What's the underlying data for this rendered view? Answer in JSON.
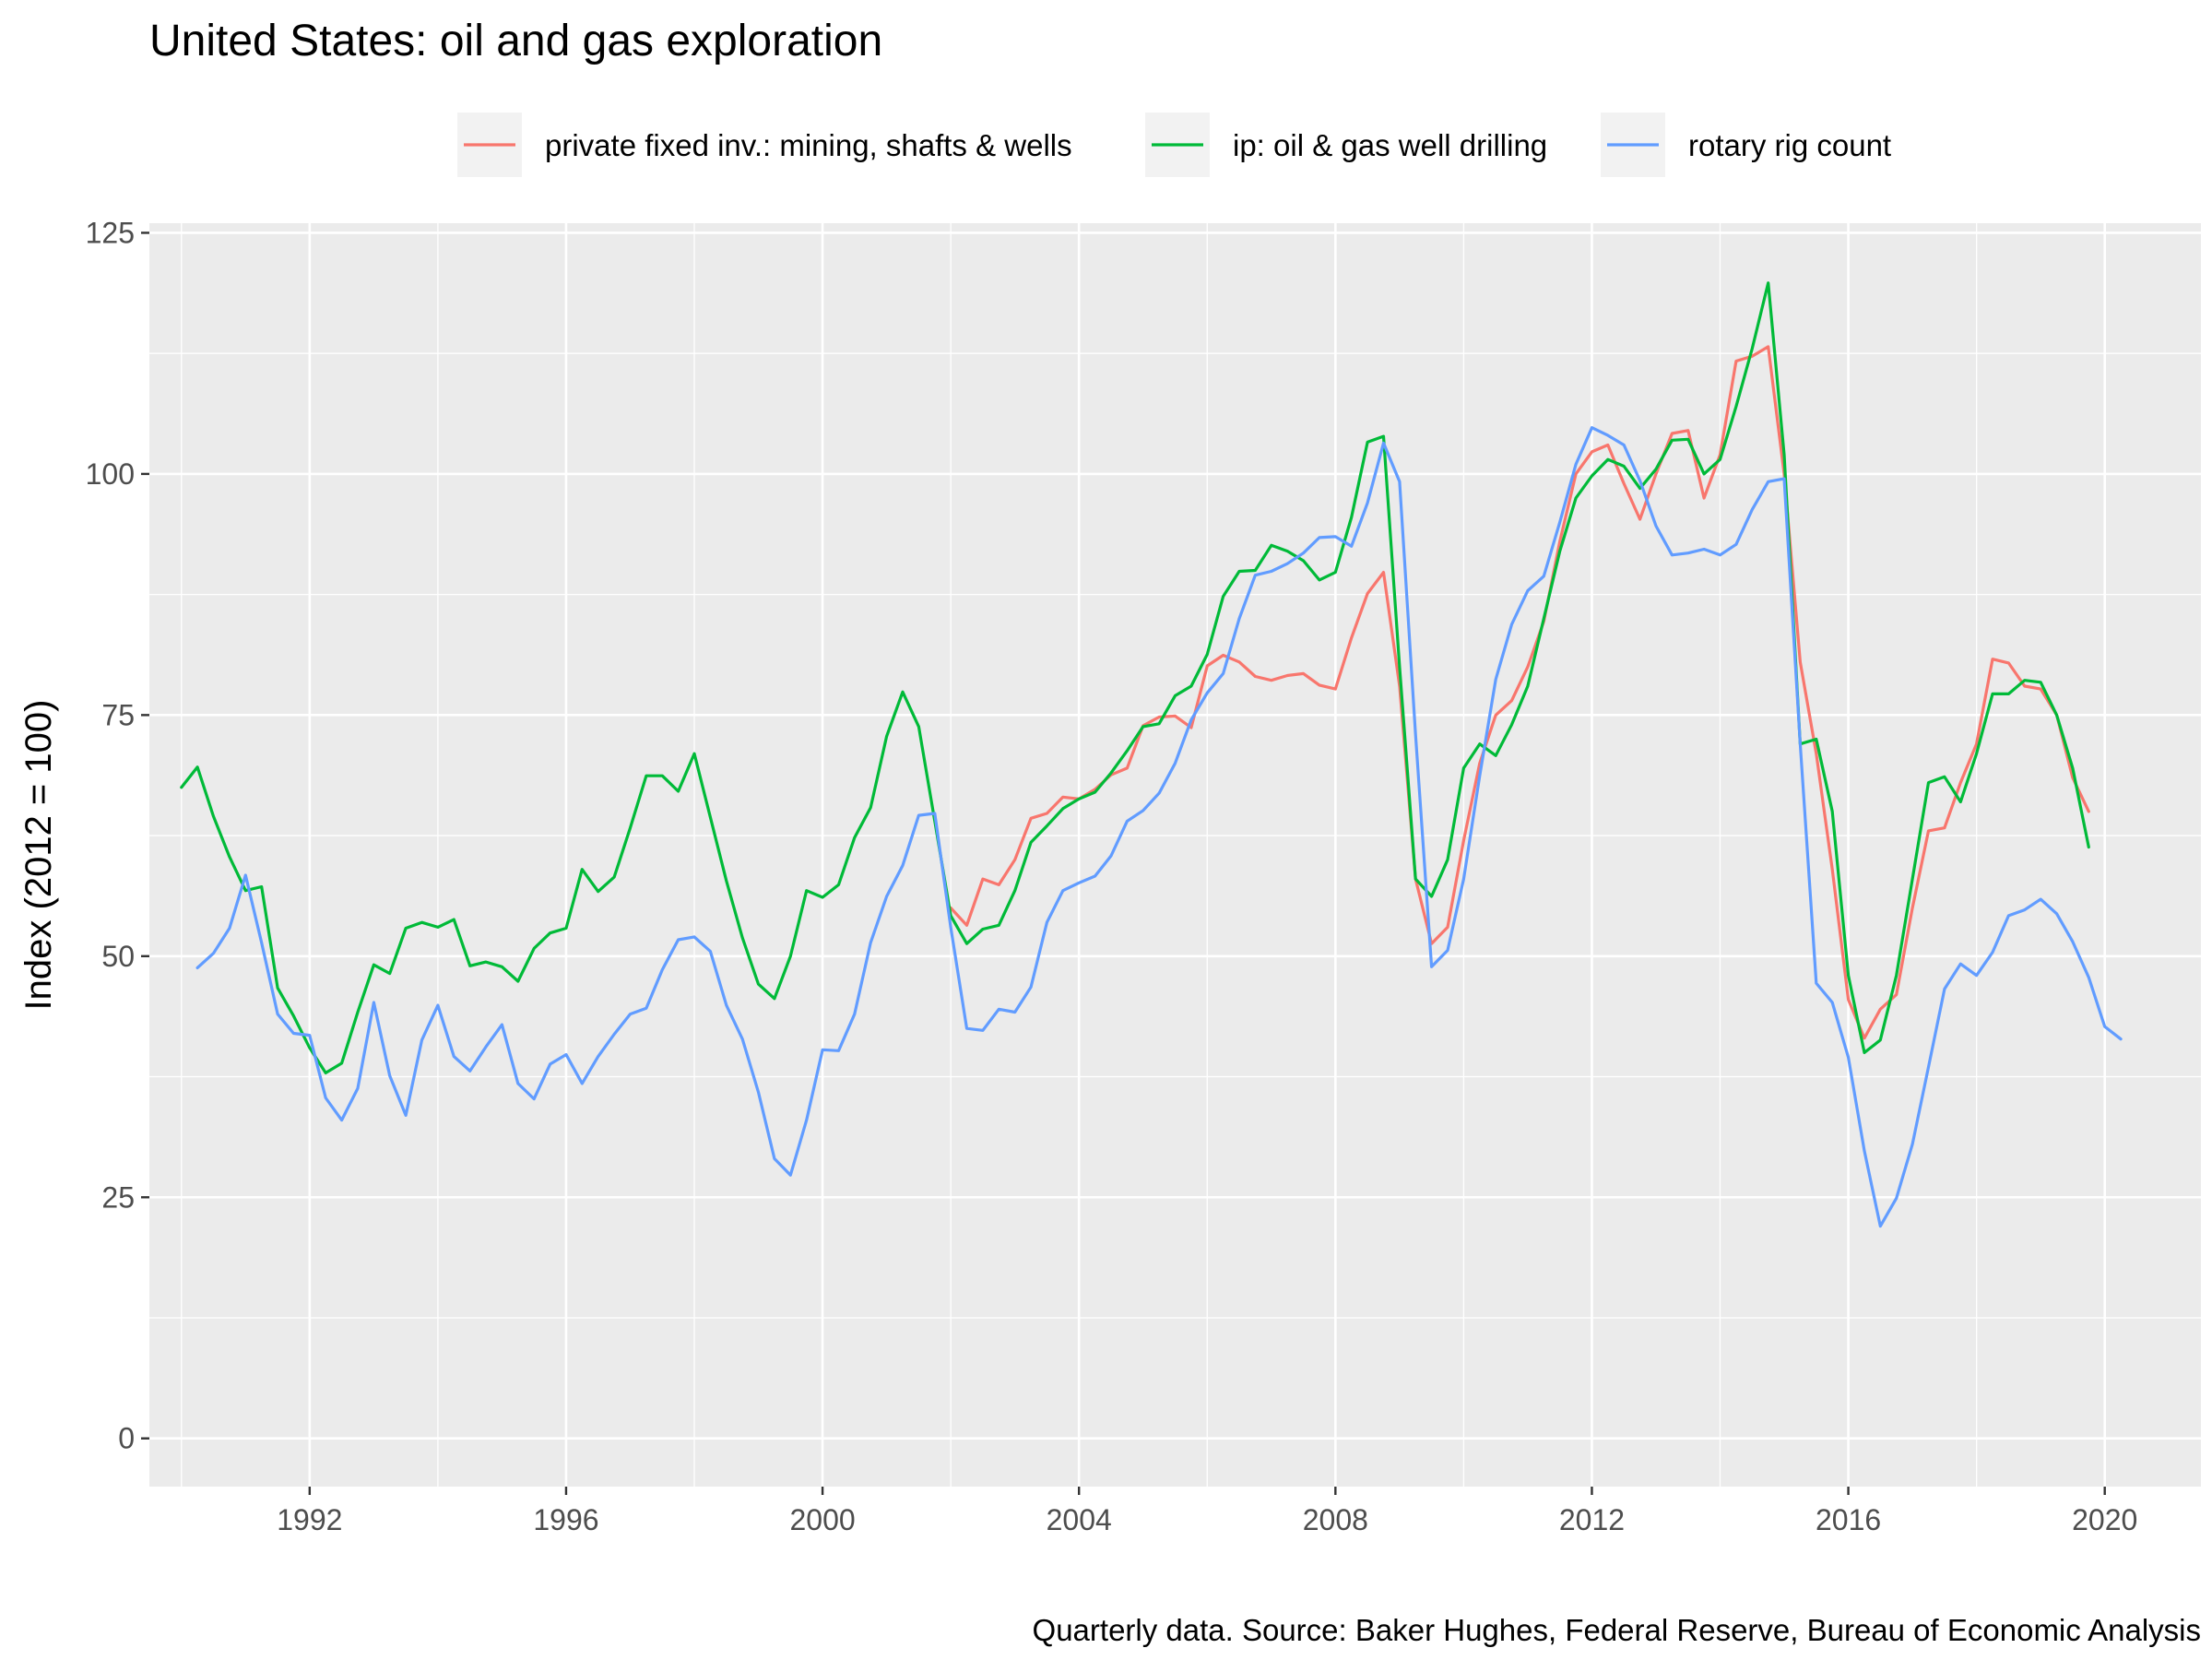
{
  "chart_data": {
    "type": "line",
    "title": "United States: oil and gas exploration",
    "xlabel": "",
    "ylabel": "Index (2012 = 100)",
    "caption": "Quarterly data. Source: Baker Hughes, Federal Reserve, Bureau of Economic Analysis",
    "xlim": [
      1989.5,
      2021.5
    ],
    "ylim": [
      -5,
      126
    ],
    "x_ticks": [
      1992,
      1996,
      2000,
      2004,
      2008,
      2012,
      2016,
      2020
    ],
    "x_tick_labels": [
      "1992",
      "1996",
      "2000",
      "2004",
      "2008",
      "2012",
      "2016",
      "2020"
    ],
    "y_ticks": [
      0,
      25,
      50,
      75,
      100,
      125
    ],
    "y_tick_labels": [
      "0",
      "25",
      "50",
      "75",
      "100",
      "125"
    ],
    "grid": true,
    "legend_position": "top",
    "series": [
      {
        "name": "private fixed inv.: mining, shafts & wells",
        "color": "#F8766D",
        "start": 2002.0,
        "step": 0.25,
        "values": [
          55.0,
          53.2,
          58.0,
          57.4,
          60.0,
          64.3,
          64.8,
          66.5,
          66.3,
          67.3,
          68.8,
          69.5,
          73.9,
          74.8,
          74.9,
          73.7,
          80.1,
          81.2,
          80.5,
          79.0,
          78.6,
          79.1,
          79.3,
          78.1,
          77.7,
          83.0,
          87.6,
          89.8,
          78.0,
          58.0,
          51.3,
          53.0,
          62.0,
          70.0,
          75.0,
          76.5,
          80.0,
          84.7,
          93.0,
          100.0,
          102.3,
          103.0,
          99.0,
          95.3,
          100.0,
          104.2,
          104.5,
          97.5,
          102.0,
          111.7,
          112.2,
          113.2,
          100.0,
          80.5,
          71.0,
          59.0,
          45.5,
          41.5,
          44.5,
          46.0,
          55.0,
          63.0,
          63.3,
          68.0,
          72.0,
          80.8,
          80.4,
          78.0,
          77.7,
          75.0,
          68.5,
          65.0
        ]
      },
      {
        "name": "ip: oil & gas well drilling",
        "color": "#00BA38",
        "start": 1990.0,
        "step": 0.25,
        "values": [
          67.5,
          69.6,
          64.5,
          60.3,
          56.8,
          57.2,
          46.7,
          43.8,
          40.5,
          37.9,
          38.9,
          44.2,
          49.1,
          48.2,
          52.9,
          53.5,
          53.0,
          53.8,
          49.0,
          49.4,
          48.9,
          47.4,
          50.8,
          52.4,
          52.9,
          59.0,
          56.7,
          58.2,
          63.3,
          68.7,
          68.7,
          67.1,
          71.0,
          64.4,
          57.8,
          51.9,
          47.1,
          45.6,
          50.0,
          56.8,
          56.1,
          57.4,
          62.3,
          65.4,
          72.8,
          77.4,
          73.8,
          64.0,
          54.2,
          51.3,
          52.8,
          53.2,
          56.8,
          61.8,
          63.5,
          65.3,
          66.3,
          67.0,
          69.0,
          71.3,
          73.8,
          74.1,
          77.0,
          78.0,
          81.3,
          87.3,
          89.9,
          90.0,
          92.6,
          92.0,
          91.0,
          89.0,
          89.8,
          95.5,
          103.3,
          103.9,
          80.0,
          58.0,
          56.2,
          60.0,
          69.5,
          72.0,
          70.8,
          74.0,
          78.0,
          85.0,
          92.0,
          97.5,
          99.8,
          101.5,
          100.8,
          98.5,
          100.5,
          103.5,
          103.6,
          100.0,
          101.5,
          107.0,
          113.0,
          119.8,
          102.0,
          72.0,
          72.5,
          65.0,
          48.0,
          40.0,
          41.3,
          48.0,
          58.0,
          68.0,
          68.6,
          66.0,
          71.0,
          77.2,
          77.2,
          78.6,
          78.4,
          75.0,
          69.5,
          61.3
        ]
      },
      {
        "name": "rotary rig count",
        "color": "#619CFF",
        "start": 1990.0,
        "step": 0.25,
        "values": [
          null,
          48.8,
          50.3,
          52.9,
          58.4,
          51.4,
          44.0,
          42.0,
          41.8,
          35.3,
          33.0,
          36.3,
          45.2,
          37.6,
          33.5,
          41.3,
          44.9,
          39.6,
          38.1,
          40.6,
          42.9,
          36.8,
          35.2,
          38.8,
          39.8,
          36.8,
          39.6,
          41.9,
          44.0,
          44.6,
          48.6,
          51.7,
          52.0,
          50.5,
          44.9,
          41.4,
          35.9,
          29.0,
          27.3,
          33.0,
          40.3,
          40.2,
          44.0,
          51.4,
          56.2,
          59.4,
          64.6,
          64.8,
          53.0,
          42.5,
          42.3,
          44.5,
          44.2,
          46.8,
          53.5,
          56.8,
          57.6,
          58.3,
          60.4,
          64.0,
          65.1,
          66.9,
          70.0,
          74.5,
          77.3,
          79.3,
          85.0,
          89.5,
          89.9,
          90.7,
          91.8,
          93.4,
          93.5,
          92.5,
          97.0,
          103.2,
          99.2,
          73.0,
          48.9,
          50.6,
          58.0,
          68.7,
          78.7,
          84.4,
          87.9,
          89.4,
          95.0,
          101.0,
          104.8,
          104.0,
          103.0,
          99.3,
          94.6,
          91.6,
          91.8,
          92.2,
          91.6,
          92.7,
          96.3,
          99.2,
          99.5,
          72.0,
          47.2,
          45.2,
          39.5,
          29.8,
          22.0,
          24.9,
          30.5,
          38.5,
          46.6,
          49.2,
          48.0,
          50.4,
          54.2,
          54.8,
          55.9,
          54.4,
          51.5,
          47.8,
          42.7,
          41.4
        ]
      }
    ]
  }
}
